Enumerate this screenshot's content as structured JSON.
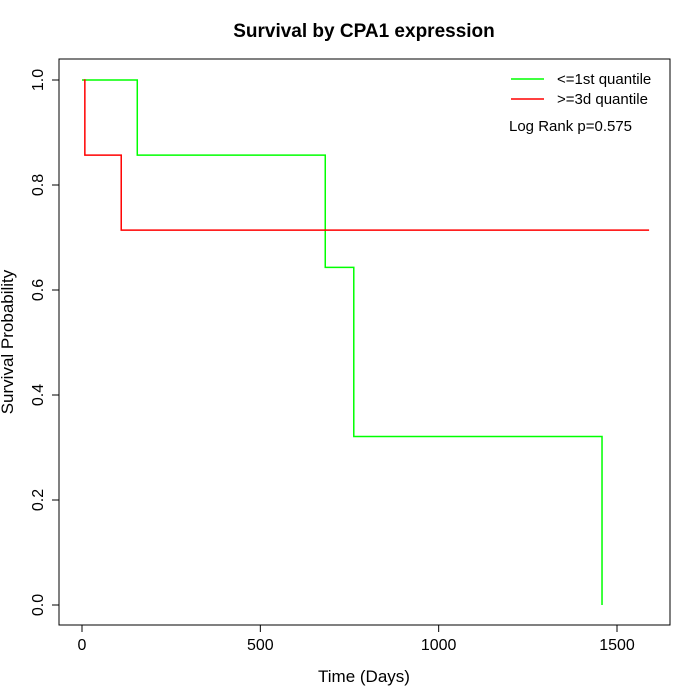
{
  "chart_data": {
    "type": "line",
    "step": true,
    "title": "Survival by CPA1 expression",
    "xlabel": "Time (Days)",
    "ylabel": "Survival Probability",
    "xlim": [
      0,
      1650
    ],
    "ylim": [
      0,
      1.0
    ],
    "x_ticks": [
      0,
      500,
      1000,
      1500
    ],
    "x_tick_labels": [
      "0",
      "500",
      "1000",
      "1500"
    ],
    "y_ticks": [
      0,
      0.2,
      0.4,
      0.6,
      0.8,
      1.0
    ],
    "y_tick_labels": [
      "0.0",
      "0.2",
      "0.4",
      "0.6",
      "0.8",
      "1.0"
    ],
    "grid": false,
    "legend_position": "top-right",
    "annotation": "Log Rank p=0.575",
    "series": [
      {
        "name": "<=1st quantile",
        "color": "#00ff00",
        "x": [
          0,
          155,
          155,
          682,
          682,
          762,
          762,
          1458,
          1458
        ],
        "y": [
          1.0,
          1.0,
          0.857,
          0.857,
          0.643,
          0.643,
          0.321,
          0.321,
          0.0
        ]
      },
      {
        "name": ">=3d quantile",
        "color": "#ff0000",
        "x": [
          5,
          8,
          8,
          110,
          110,
          1590
        ],
        "y": [
          1.0,
          1.0,
          0.857,
          0.857,
          0.714,
          0.714
        ]
      }
    ]
  }
}
